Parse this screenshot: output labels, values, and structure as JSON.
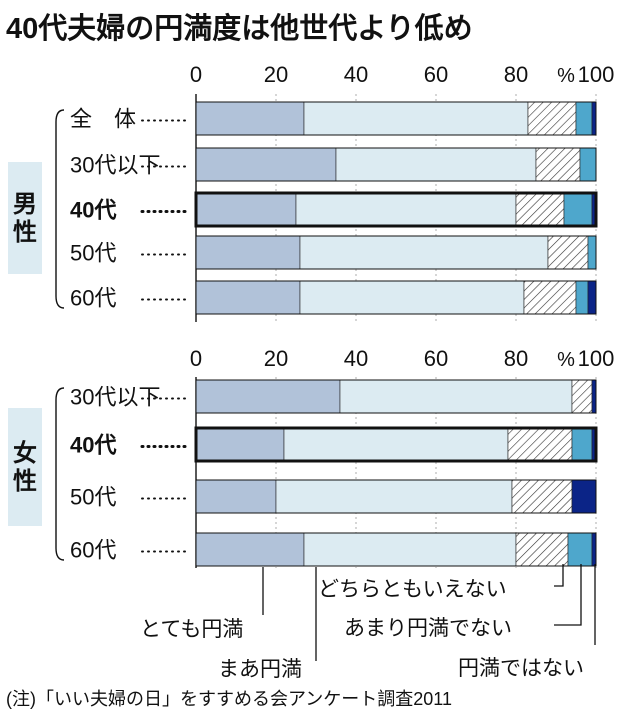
{
  "title": "40代夫婦の円満度は他世代より低め",
  "note": "(注)「いい夫婦の日」をすすめる会アンケート調査2011",
  "colors": {
    "very_satisfied": "#b1c2d9",
    "somewhat_satisfied": "#dcebf2",
    "neither": "hatched",
    "not_very": "#4ea7cc",
    "not_at_all": "#0b2487",
    "group_box": "#dcebf2",
    "grid": "#999999"
  },
  "chart_data": [
    {
      "type": "bar",
      "orientation": "horizontal",
      "stacked": true,
      "group": "男性",
      "x_ticks": [
        "0",
        "20",
        "40",
        "60",
        "80",
        "100"
      ],
      "unit_label": "%",
      "xlim": [
        0,
        100
      ],
      "categories": [
        "全　体",
        "30代以下",
        "40代",
        "50代",
        "60代"
      ],
      "emphasized_category": "40代",
      "series": [
        {
          "name": "とても円満",
          "values": [
            27,
            35,
            25,
            26,
            26
          ]
        },
        {
          "name": "まあ円満",
          "values": [
            56,
            50,
            55,
            62,
            56
          ]
        },
        {
          "name": "どちらともいえない",
          "values": [
            12,
            11,
            12,
            10,
            13
          ]
        },
        {
          "name": "あまり円満でない",
          "values": [
            4,
            4,
            7,
            2,
            3
          ]
        },
        {
          "name": "円満ではない",
          "values": [
            1,
            0,
            1,
            0,
            2
          ]
        }
      ]
    },
    {
      "type": "bar",
      "orientation": "horizontal",
      "stacked": true,
      "group": "女性",
      "x_ticks": [
        "0",
        "20",
        "40",
        "60",
        "80",
        "100"
      ],
      "unit_label": "%",
      "xlim": [
        0,
        100
      ],
      "categories": [
        "30代以下",
        "40代",
        "50代",
        "60代"
      ],
      "emphasized_category": "40代",
      "series": [
        {
          "name": "とても円満",
          "values": [
            36,
            22,
            20,
            27
          ]
        },
        {
          "name": "まあ円満",
          "values": [
            58,
            56,
            59,
            53
          ]
        },
        {
          "name": "どちらともいえない",
          "values": [
            5,
            16,
            15,
            13
          ]
        },
        {
          "name": "あまり円満でない",
          "values": [
            0,
            5,
            0,
            6
          ]
        },
        {
          "name": "円満ではない",
          "values": [
            1,
            1,
            6,
            1
          ]
        }
      ]
    }
  ]
}
